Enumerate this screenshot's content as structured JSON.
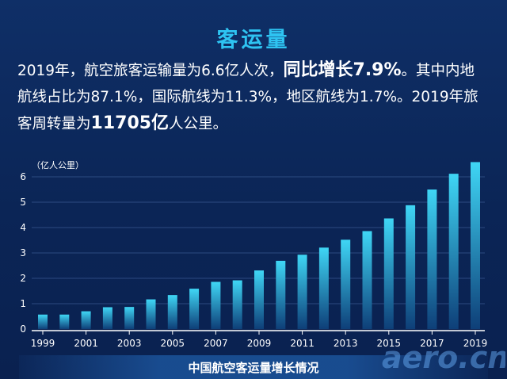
{
  "title": "客运量",
  "paragraph": {
    "line1_a": "2019年，航空旅客运输量为6.6亿人次，",
    "line1_em": "同比增长7.9%",
    "line1_b": "。其中内地",
    "line2": "航线占比为87.1%，国际航线为11.3%，地区航线为1.7%。2019年旅",
    "line3_a": "客周转量为",
    "line3_em": "11705亿",
    "line3_b": "人公里。"
  },
  "caption": "中国航空客运量增长情况",
  "watermark": "aero.cn",
  "colors": {
    "title": "#2ec4f2",
    "bar_top": "#3fd6f5",
    "bar_bottom": "#0e3f78",
    "background": "#0b2556"
  },
  "chart_data": {
    "type": "bar",
    "unit_label": "（亿人公里）",
    "categories": [
      "1999",
      "2000",
      "2001",
      "2002",
      "2003",
      "2004",
      "2005",
      "2006",
      "2007",
      "2008",
      "2009",
      "2010",
      "2011",
      "2012",
      "2013",
      "2014",
      "2015",
      "2016",
      "2017",
      "2018",
      "2019"
    ],
    "values": [
      0.57,
      0.57,
      0.7,
      0.86,
      0.87,
      1.17,
      1.34,
      1.59,
      1.86,
      1.92,
      2.31,
      2.69,
      2.93,
      3.21,
      3.52,
      3.86,
      4.36,
      4.88,
      5.5,
      6.12,
      6.58
    ],
    "x_tick_labels": [
      "1999",
      "2001",
      "2003",
      "2005",
      "2007",
      "2009",
      "2011",
      "2013",
      "2015",
      "2017",
      "2019"
    ],
    "y_ticks": [
      0,
      1,
      2,
      3,
      4,
      5,
      6
    ],
    "ylim": [
      0,
      7
    ],
    "grid": true
  }
}
